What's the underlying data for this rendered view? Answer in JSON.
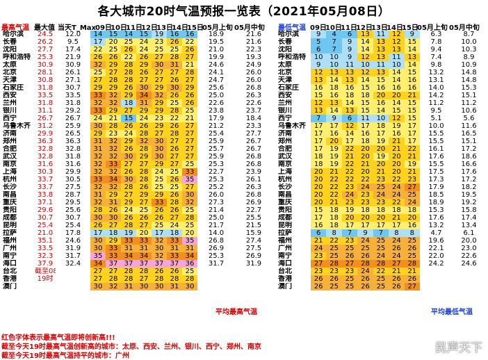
{
  "title": "各大城市20时气温预报一览表（2021年05月08日）",
  "max_table": {
    "headers": [
      "最高气温",
      "最大值",
      "当天T_Max",
      "09日",
      "10日",
      "11日",
      "12日",
      "13日",
      "14日",
      "15日",
      "05月上旬",
      "05月中旬"
    ],
    "rows": [
      [
        "哈尔滨",
        "24.5",
        "12.0",
        "14",
        "15",
        "14",
        "15",
        "19",
        "16",
        "16",
        "18.9",
        "21.6"
      ],
      [
        "长春",
        "26.2",
        "9.5",
        "17",
        "20",
        "25",
        "24",
        "23",
        "26",
        "22",
        "19.5",
        "21.6"
      ],
      [
        "沈阳",
        "27.7",
        "17.4",
        "22",
        "25",
        "26",
        "24",
        "25",
        "25",
        "26",
        "21.0",
        "22.3"
      ],
      [
        "呼和浩特",
        "25.3",
        "21.9",
        "26",
        "26",
        "22",
        "26",
        "27",
        "28",
        "27",
        "19.9",
        "19.3"
      ],
      [
        "太原",
        "30.9",
        "30.9",
        "32",
        "29",
        "28",
        "29",
        "30",
        "31",
        "21",
        "24.6",
        "24.9"
      ],
      [
        "北京",
        "28.1",
        "26.1",
        "25",
        "27",
        "28",
        "26",
        "27",
        "27",
        "28",
        "24.1",
        "26.0"
      ],
      [
        "天津",
        "30.8",
        "27.1",
        "27",
        "28",
        "28",
        "27",
        "27",
        "26",
        "27",
        "24.7",
        "26.0"
      ],
      [
        "石家庄",
        "31.8",
        "30.7",
        "29",
        "29",
        "26",
        "30",
        "29",
        "30",
        "29",
        "25.6",
        "26.8"
      ],
      [
        "西安",
        "33.5",
        "33.5",
        "33",
        "32",
        "29",
        "34",
        "32",
        "26",
        "26",
        "25.0",
        "26.3"
      ],
      [
        "兰州",
        "31.8",
        "31.8",
        "32",
        "32",
        "18",
        "31",
        "29",
        "25",
        "26",
        "22.6",
        "22.6"
      ],
      [
        "银川",
        "31.1",
        "29.2",
        "33",
        "29",
        "27",
        "29",
        "29",
        "28",
        "25",
        "23.8",
        "23.7"
      ],
      [
        "西宁",
        "26.7",
        "26.7",
        "24",
        "21",
        "15",
        "24",
        "23",
        "22",
        "21",
        "17.9",
        "18.4"
      ],
      [
        "乌鲁木齐",
        "31.2",
        "25.9",
        "30",
        "28",
        "26",
        "26",
        "29",
        "26",
        "27",
        "21.2",
        "23.3"
      ],
      [
        "济南",
        "29.9",
        "26.5",
        "29",
        "23",
        "24",
        "28",
        "27",
        "28",
        "27",
        "25.4",
        "27.7"
      ],
      [
        "郑州",
        "36.3",
        "36.3",
        "31",
        "32",
        "29",
        "32",
        "30",
        "27",
        "27",
        "25.9",
        "26.7"
      ],
      [
        "合肥",
        "32.8",
        "32.8",
        "31",
        "32",
        "26",
        "28",
        "30",
        "26",
        "27",
        "25.7",
        "26.7"
      ],
      [
        "武汉",
        "32.8",
        "31.8",
        "32",
        "32",
        "30",
        "29",
        "30",
        "27",
        "27",
        "25.9",
        "26.8"
      ],
      [
        "南京",
        "31.6",
        "31.6",
        "32",
        "33",
        "27",
        "27",
        "29",
        "27",
        "25",
        "25.3",
        "26.8"
      ],
      [
        "上海",
        "30.3",
        "29.9",
        "32",
        "32",
        "26",
        "28",
        "24",
        "25",
        "33",
        "22.7",
        "23.9"
      ],
      [
        "杭州",
        "33.7",
        "30.5",
        "33",
        "34",
        "30",
        "28",
        "25",
        "26",
        "35",
        "25.3",
        "26.1"
      ],
      [
        "长沙",
        "33.7",
        "27.5",
        "32",
        "32",
        "28",
        "26",
        "25",
        "25",
        "27",
        "25.2",
        "26.3"
      ],
      [
        "南昌",
        "33.8",
        "28.7",
        "31",
        "29",
        "27",
        "29",
        "29",
        "26",
        "30",
        "26.0",
        "26.8"
      ],
      [
        "重庆",
        "37.1",
        "29.5",
        "32",
        "31",
        "29",
        "27",
        "33",
        "28",
        "32",
        "27.3",
        "26.9"
      ],
      [
        "贵阳",
        "29.6",
        "25.6",
        "28",
        "26",
        "24",
        "25",
        "26",
        "26",
        "25",
        "21.4",
        "22.7"
      ],
      [
        "成都",
        "30.7",
        "30.7",
        "30",
        "30",
        "26",
        "26",
        "26",
        "27",
        "28",
        "25.0",
        "25.5"
      ],
      [
        "昆明",
        "25.4",
        "25.4",
        "26",
        "27",
        "28",
        "27",
        "25",
        "24",
        "25",
        "21.7",
        "21.5"
      ],
      [
        "拉萨",
        "21.0",
        "17.8",
        "17",
        "18",
        "19",
        "20",
        "17",
        "18",
        "20",
        "14.0",
        "15.9"
      ],
      [
        "福州",
        "35.1",
        "24.6",
        "30",
        "29",
        "33",
        "33",
        "32",
        "33",
        "35",
        "26.8",
        "27.4"
      ],
      [
        "广州",
        "33.5",
        "31.9",
        "30",
        "33",
        "31",
        "31",
        "30",
        "31",
        "31",
        "26.9",
        "27.5"
      ],
      [
        "南宁",
        "32.3",
        "31.7",
        "35",
        "33",
        "34",
        "34",
        "32",
        "33",
        "34",
        "25.3",
        "26.9"
      ],
      [
        "海口",
        "37.9",
        "32.4",
        "34",
        "37",
        "37",
        "37",
        "37",
        "37",
        "36",
        "31.7",
        "31.9"
      ],
      [
        "台北",
        "截至08日",
        "",
        "27",
        "27",
        "28",
        "28",
        "26",
        "26",
        "25",
        "",
        ""
      ],
      [
        "香港",
        "19时",
        "",
        "27",
        "28",
        "28",
        "27",
        "28",
        "28",
        "28",
        "",
        ""
      ],
      [
        "澳门",
        "",
        "",
        "30",
        "32",
        "31",
        "30",
        "30",
        "31",
        "30",
        "",
        ""
      ]
    ],
    "avg_label": "平均最高气温"
  },
  "min_table": {
    "headers": [
      "最低气温",
      "09日",
      "10日",
      "11日",
      "12日",
      "13日",
      "14日",
      "15日",
      "05月上旬",
      "05月中旬"
    ],
    "rows": [
      [
        "哈尔滨",
        "9",
        "4",
        "6",
        "13",
        "11",
        "12",
        "9",
        "6.3",
        "8.7"
      ],
      [
        "长春",
        "5",
        "7",
        "9",
        "14",
        "13",
        "12",
        "15",
        "7.8",
        "10.0"
      ],
      [
        "沈阳",
        "6",
        "7",
        "9",
        "14",
        "13",
        "13",
        "14",
        "9.4",
        "10.3"
      ],
      [
        "呼和浩特",
        "10",
        "10",
        "9",
        "12",
        "13",
        "11",
        "13",
        "7.4",
        "8.9"
      ],
      [
        "太原",
        "9",
        "10",
        "11",
        "10",
        "11",
        "10",
        "14",
        "9.8",
        "10.9"
      ],
      [
        "北京",
        "12",
        "13",
        "13",
        "12",
        "13",
        "14",
        "15",
        "13.2",
        "14.8"
      ],
      [
        "天津",
        "13",
        "14",
        "13",
        "14",
        "15",
        "14",
        "16",
        "13.1",
        "14.8"
      ],
      [
        "石家庄",
        "16",
        "18",
        "16",
        "15",
        "16",
        "16",
        "16",
        "14.0",
        "15.3"
      ],
      [
        "西安",
        "15",
        "16",
        "18",
        "18",
        "20",
        "20",
        "21",
        "14.2",
        "15.1"
      ],
      [
        "兰州",
        "12",
        "13",
        "14",
        "15",
        "16",
        "14",
        "15",
        "11.2",
        "11.2"
      ],
      [
        "银川",
        "13",
        "14",
        "13",
        "15",
        "14",
        "15",
        "15",
        "9.5",
        "10.6"
      ],
      [
        "西宁",
        "7",
        "9",
        "6",
        "11",
        "10",
        "12",
        "15",
        "5.1",
        "5.6"
      ],
      [
        "乌鲁木齐",
        "17",
        "17",
        "12",
        "17",
        "18",
        "19",
        "17",
        "10.0",
        "11.6"
      ],
      [
        "济南",
        "17",
        "16",
        "14",
        "16",
        "17",
        "16",
        "17",
        "15.5",
        "16.5"
      ],
      [
        "郑州",
        "17",
        "20",
        "17",
        "18",
        "19",
        "21",
        "17",
        "15.5",
        "15.1"
      ],
      [
        "合肥",
        "17",
        "19",
        "22",
        "20",
        "20",
        "21",
        "22",
        "16.1",
        "17.2"
      ],
      [
        "武汉",
        "18",
        "19",
        "21",
        "20",
        "19",
        "20",
        "21",
        "17.6",
        "18.6"
      ],
      [
        "南京",
        "18",
        "19",
        "22",
        "21",
        "20",
        "20",
        "19",
        "15.5",
        "16.6"
      ],
      [
        "上海",
        "20",
        "21",
        "22",
        "20",
        "21",
        "20",
        "21",
        "17.5",
        "17.6"
      ],
      [
        "杭州",
        "20",
        "22",
        "22",
        "22",
        "23",
        "22",
        "23",
        "17.3",
        "17.2"
      ],
      [
        "长沙",
        "20",
        "22",
        "23",
        "24",
        "25",
        "24",
        "27",
        "17.9",
        "18.2"
      ],
      [
        "南昌",
        "20",
        "22",
        "24",
        "23",
        "24",
        "24",
        "25",
        "18.5",
        "19.5"
      ],
      [
        "重庆",
        "20",
        "21",
        "23",
        "23",
        "23",
        "22",
        "24",
        "18.9",
        "19.2"
      ],
      [
        "贵阳",
        "15",
        "18",
        "19",
        "18",
        "18",
        "18",
        "18",
        "15.3",
        "15.8"
      ],
      [
        "成都",
        "17",
        "18",
        "20",
        "20",
        "20",
        "21",
        "20",
        "17.6",
        "17.4"
      ],
      [
        "昆明",
        "16",
        "18",
        "17",
        "17",
        "17",
        "17",
        "16",
        "13.2",
        "13.4"
      ],
      [
        "拉萨",
        "6",
        "8",
        "7",
        "9",
        "7",
        "8",
        "8",
        "4.7",
        "6.1"
      ],
      [
        "福州",
        "21",
        "22",
        "23",
        "24",
        "25",
        "24",
        "25",
        "19.6",
        "20.0"
      ],
      [
        "广州",
        "24",
        "25",
        "25",
        "25",
        "25",
        "26",
        "26",
        "22.1",
        "23.0"
      ],
      [
        "南宁",
        "23",
        "25",
        "26",
        "26",
        "24",
        "24",
        "25",
        "22.0",
        "22.6"
      ],
      [
        "海口",
        "27",
        "28",
        "27",
        "28",
        "28",
        "27",
        "28",
        "24.2",
        "24.6"
      ],
      [
        "台北",
        "23",
        "23",
        "23",
        "24",
        "22",
        "21",
        "21",
        "",
        ""
      ],
      [
        "香港",
        "26",
        "26",
        "25",
        "26",
        "25",
        "26",
        "26",
        "",
        ""
      ],
      [
        "澳门",
        "26",
        "25",
        "25",
        "26",
        "25",
        "26",
        "27",
        "",
        ""
      ]
    ],
    "avg_label": "平均最低气温"
  },
  "notes": [
    "红色字体表示最高气温即将创新高!!!",
    "截至今天19时最高气温创新高的城市：太原、西安、兰州、银川、西宁、郑州、南京",
    "截至今天19时最高气温持平的城市：广州"
  ],
  "watermark": "民声天下",
  "colors": {
    "light_blue": "#aedff7",
    "cyan": "#6ec7f0",
    "yellow": "#ffef6e",
    "gold": "#ffd21f",
    "orange": "#f7b13a",
    "dark_orange": "#f28f1f",
    "pink": "#f4a6d6",
    "header_red": "#d40000",
    "header_blue": "#1a3fd4"
  },
  "chart_data": [
    {
      "type": "table",
      "title": "各大城市20时气温预报一览表（2021年05月08日）",
      "columns": [
        "最高气温",
        "最大值",
        "当天T_Max",
        "09日",
        "10日",
        "11日",
        "12日",
        "13日",
        "14日",
        "15日",
        "05月上旬",
        "05月中旬"
      ],
      "description_source": "max_table.rows"
    },
    {
      "type": "table",
      "columns": [
        "最低气温",
        "09日",
        "10日",
        "11日",
        "12日",
        "13日",
        "14日",
        "15日",
        "05月上旬",
        "05月中旬"
      ],
      "description_source": "min_table.rows"
    }
  ]
}
